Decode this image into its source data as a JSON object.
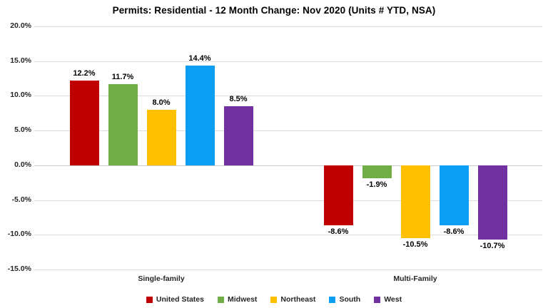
{
  "chart_data": {
    "type": "bar",
    "title": "Permits: Residential - 12 Month Change: Nov 2020 (Units # YTD, NSA)",
    "categories": [
      "Single-family",
      "Multi-Family"
    ],
    "series": [
      {
        "name": "United States",
        "color": "#C00000",
        "values": [
          12.2,
          -8.6
        ],
        "labels": [
          "12.2%",
          "-8.6%"
        ]
      },
      {
        "name": "Midwest",
        "color": "#70AD47",
        "values": [
          11.7,
          -1.9
        ],
        "labels": [
          "11.7%",
          "-1.9%"
        ]
      },
      {
        "name": "Northeast",
        "color": "#FFC000",
        "values": [
          8.0,
          -10.5
        ],
        "labels": [
          "8.0%",
          "-10.5%"
        ]
      },
      {
        "name": "South",
        "color": "#0C9EF2",
        "values": [
          14.4,
          -8.6
        ],
        "labels": [
          "14.4%",
          "-8.6%"
        ]
      },
      {
        "name": "West",
        "color": "#7030A0",
        "values": [
          8.5,
          -10.7
        ],
        "labels": [
          "8.5%",
          "-10.7%"
        ]
      }
    ],
    "y_ticks": [
      20,
      15,
      10,
      5,
      0,
      -5,
      -10,
      -15
    ],
    "y_tick_labels": [
      "20.0%",
      "15.0%",
      "10.0%",
      "5.0%",
      "0.0%",
      "-5.0%",
      "-10.0%",
      "-15.0%"
    ],
    "ylim": [
      -15,
      20
    ],
    "grid": true,
    "gridline_color": "#DBDBDB",
    "zero_line_color": "#C8C8C8",
    "legend_position": "bottom",
    "xlabel": "",
    "ylabel": ""
  }
}
